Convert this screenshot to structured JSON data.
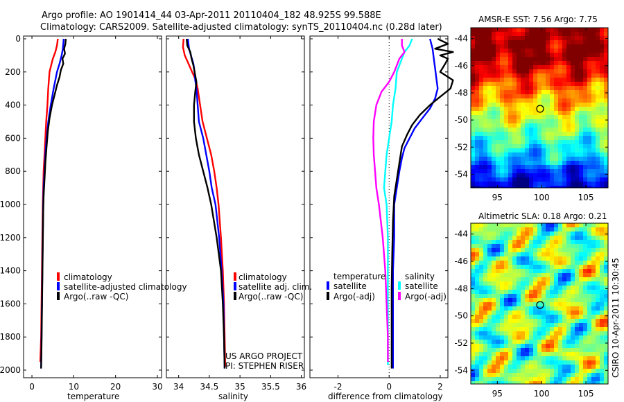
{
  "header": {
    "title_line1": "Argo profile: AO 1901414_44 03-Apr-2011 20110404_182 48.925S 99.588E",
    "title_line2": "Climatology: CARS2009. Satellite-adjusted climatology: synTS_20110404.nc (0.28d later)"
  },
  "colors": {
    "climatology": "#ff0000",
    "satellite": "#0000ff",
    "argo": "#000000",
    "argo_salinity": "#ff00ff",
    "satellite_salinity": "#00ffff"
  },
  "chart_data": [
    {
      "type": "line",
      "id": "temperature",
      "xlabel": "temperature",
      "xlim": [
        -2,
        31
      ],
      "ylim": [
        2050,
        0
      ],
      "xticks": [
        0,
        10,
        20,
        30
      ],
      "yticks": [
        0,
        200,
        400,
        600,
        800,
        1000,
        1200,
        1400,
        1600,
        1800,
        2000
      ],
      "series": [
        {
          "name": "climatology",
          "color": "#ff0000",
          "points": [
            [
              6.2,
              0
            ],
            [
              6.0,
              40
            ],
            [
              5.6,
              80
            ],
            [
              5.0,
              120
            ],
            [
              4.6,
              160
            ],
            [
              4.2,
              200
            ],
            [
              3.9,
              300
            ],
            [
              3.7,
              400
            ],
            [
              3.4,
              500
            ],
            [
              3.2,
              600
            ],
            [
              3.0,
              700
            ],
            [
              2.8,
              800
            ],
            [
              2.7,
              900
            ],
            [
              2.6,
              1000
            ],
            [
              2.5,
              1200
            ],
            [
              2.4,
              1400
            ],
            [
              2.3,
              1600
            ],
            [
              2.2,
              1800
            ],
            [
              2.0,
              1950
            ]
          ]
        },
        {
          "name": "satellite-adjusted climatology",
          "color": "#0000ff",
          "points": [
            [
              7.6,
              0
            ],
            [
              7.5,
              30
            ],
            [
              7.4,
              60
            ],
            [
              7.1,
              100
            ],
            [
              6.6,
              150
            ],
            [
              6.0,
              200
            ],
            [
              5.2,
              300
            ],
            [
              4.5,
              400
            ],
            [
              3.9,
              500
            ],
            [
              3.5,
              600
            ],
            [
              3.2,
              700
            ],
            [
              3.0,
              800
            ],
            [
              2.8,
              900
            ],
            [
              2.7,
              1000
            ],
            [
              2.6,
              1200
            ],
            [
              2.5,
              1400
            ],
            [
              2.4,
              1600
            ],
            [
              2.3,
              1800
            ],
            [
              2.2,
              1990
            ]
          ]
        },
        {
          "name": "Argo(..raw -QC)",
          "color": "#000000",
          "points": [
            [
              8.1,
              0
            ],
            [
              8.0,
              30
            ],
            [
              7.7,
              60
            ],
            [
              7.9,
              90
            ],
            [
              7.3,
              120
            ],
            [
              7.5,
              150
            ],
            [
              6.9,
              190
            ],
            [
              6.6,
              230
            ],
            [
              6.0,
              280
            ],
            [
              5.4,
              340
            ],
            [
              4.8,
              400
            ],
            [
              4.2,
              480
            ],
            [
              3.8,
              560
            ],
            [
              3.5,
              650
            ],
            [
              3.2,
              750
            ],
            [
              3.0,
              850
            ],
            [
              2.8,
              950
            ],
            [
              2.7,
              1050
            ],
            [
              2.6,
              1250
            ],
            [
              2.5,
              1450
            ],
            [
              2.4,
              1650
            ],
            [
              2.3,
              1850
            ],
            [
              2.2,
              1990
            ]
          ]
        }
      ],
      "legend": [
        "climatology",
        "satellite-adjusted climatology",
        "Argo(..raw -QC)"
      ]
    },
    {
      "type": "line",
      "id": "salinity",
      "xlabel": "salinity",
      "xlim": [
        33.8,
        36.05
      ],
      "ylim": [
        2050,
        0
      ],
      "xticks": [
        34,
        34.5,
        35,
        35.5,
        36
      ],
      "xtick_labels": [
        "34",
        "34.5",
        "35",
        "35.5",
        "36"
      ],
      "series": [
        {
          "name": "climatology",
          "color": "#ff0000",
          "points": [
            [
              34.08,
              0
            ],
            [
              34.07,
              50
            ],
            [
              34.1,
              100
            ],
            [
              34.16,
              150
            ],
            [
              34.22,
              200
            ],
            [
              34.28,
              250
            ],
            [
              34.31,
              300
            ],
            [
              34.35,
              400
            ],
            [
              34.39,
              500
            ],
            [
              34.46,
              600
            ],
            [
              34.53,
              700
            ],
            [
              34.58,
              800
            ],
            [
              34.62,
              900
            ],
            [
              34.65,
              1000
            ],
            [
              34.69,
              1200
            ],
            [
              34.72,
              1400
            ],
            [
              34.74,
              1600
            ],
            [
              34.75,
              1800
            ],
            [
              34.76,
              1980
            ]
          ]
        },
        {
          "name": "satellite adj. clim.",
          "color": "#0000ff",
          "points": [
            [
              34.15,
              0
            ],
            [
              34.16,
              30
            ],
            [
              34.17,
              60
            ],
            [
              34.2,
              100
            ],
            [
              34.24,
              150
            ],
            [
              34.26,
              200
            ],
            [
              34.27,
              250
            ],
            [
              34.29,
              300
            ],
            [
              34.31,
              400
            ],
            [
              34.33,
              500
            ],
            [
              34.4,
              600
            ],
            [
              34.45,
              700
            ],
            [
              34.5,
              800
            ],
            [
              34.54,
              900
            ],
            [
              34.6,
              1000
            ],
            [
              34.66,
              1200
            ],
            [
              34.7,
              1400
            ],
            [
              34.73,
              1600
            ],
            [
              34.74,
              1800
            ],
            [
              34.75,
              1990
            ]
          ]
        },
        {
          "name": "Argo(..raw -QC)",
          "color": "#000000",
          "points": [
            [
              34.13,
              0
            ],
            [
              34.14,
              40
            ],
            [
              34.19,
              80
            ],
            [
              34.21,
              120
            ],
            [
              34.24,
              160
            ],
            [
              34.26,
              200
            ],
            [
              34.29,
              260
            ],
            [
              34.27,
              320
            ],
            [
              34.25,
              400
            ],
            [
              34.25,
              500
            ],
            [
              34.28,
              600
            ],
            [
              34.33,
              700
            ],
            [
              34.4,
              800
            ],
            [
              34.47,
              900
            ],
            [
              34.53,
              1000
            ],
            [
              34.62,
              1200
            ],
            [
              34.69,
              1400
            ],
            [
              34.72,
              1600
            ],
            [
              34.74,
              1800
            ],
            [
              34.75,
              1990
            ]
          ]
        }
      ],
      "legend": [
        "climatology",
        "satellite adj. clim.",
        "Argo(..raw -QC)"
      ],
      "note_line1": "US ARGO PROJECT",
      "note_line2": "PI: STEPHEN RISER"
    },
    {
      "type": "line",
      "id": "difference",
      "xlabel": "difference from climatology",
      "xlim": [
        -3.1,
        2.3
      ],
      "ylim": [
        2050,
        0
      ],
      "xticks": [
        -2,
        0,
        2
      ],
      "series": [
        {
          "name": "temperature satellite",
          "color": "#0000ff",
          "points": [
            [
              1.6,
              0
            ],
            [
              1.7,
              60
            ],
            [
              1.75,
              120
            ],
            [
              1.8,
              180
            ],
            [
              1.85,
              240
            ],
            [
              1.9,
              300
            ],
            [
              1.8,
              360
            ],
            [
              1.6,
              420
            ],
            [
              1.3,
              480
            ],
            [
              1.0,
              540
            ],
            [
              0.8,
              600
            ],
            [
              0.6,
              660
            ],
            [
              0.5,
              720
            ],
            [
              0.4,
              800
            ],
            [
              0.3,
              900
            ],
            [
              0.2,
              1000
            ],
            [
              0.2,
              1200
            ],
            [
              0.15,
              1400
            ],
            [
              0.15,
              1600
            ],
            [
              0.15,
              1800
            ],
            [
              0.15,
              1990
            ]
          ]
        },
        {
          "name": "temperature Argo(-adj)",
          "color": "#000000",
          "points": [
            [
              1.9,
              0
            ],
            [
              2.3,
              30
            ],
            [
              1.8,
              60
            ],
            [
              2.5,
              80
            ],
            [
              2.0,
              100
            ],
            [
              2.3,
              120
            ],
            [
              2.2,
              150
            ],
            [
              2.0,
              200
            ],
            [
              2.5,
              250
            ],
            [
              2.4,
              300
            ],
            [
              2.0,
              350
            ],
            [
              1.6,
              400
            ],
            [
              1.2,
              460
            ],
            [
              0.9,
              520
            ],
            [
              0.7,
              580
            ],
            [
              0.5,
              650
            ],
            [
              0.4,
              750
            ],
            [
              0.3,
              850
            ],
            [
              0.2,
              950
            ],
            [
              0.15,
              1100
            ],
            [
              0.12,
              1300
            ],
            [
              0.1,
              1500
            ],
            [
              0.1,
              1700
            ],
            [
              0.1,
              1900
            ],
            [
              0.1,
              1990
            ]
          ]
        },
        {
          "name": "salinity satellite",
          "color": "#00ffff",
          "points": [
            [
              0.9,
              0
            ],
            [
              0.8,
              40
            ],
            [
              0.6,
              80
            ],
            [
              0.5,
              120
            ],
            [
              0.3,
              200
            ],
            [
              0.25,
              300
            ],
            [
              0.15,
              400
            ],
            [
              0.1,
              500
            ],
            [
              0.0,
              600
            ],
            [
              -0.1,
              700
            ],
            [
              -0.15,
              800
            ],
            [
              -0.2,
              900
            ],
            [
              -0.1,
              1000
            ],
            [
              -0.05,
              1200
            ],
            [
              -0.05,
              1400
            ],
            [
              -0.05,
              1600
            ],
            [
              -0.05,
              1800
            ],
            [
              -0.05,
              1970
            ]
          ]
        },
        {
          "name": "salinity Argo(-adj)",
          "color": "#ff00ff",
          "points": [
            [
              0.5,
              0
            ],
            [
              0.5,
              40
            ],
            [
              0.6,
              80
            ],
            [
              0.4,
              120
            ],
            [
              0.2,
              200
            ],
            [
              0.0,
              260
            ],
            [
              -0.3,
              320
            ],
            [
              -0.5,
              400
            ],
            [
              -0.6,
              500
            ],
            [
              -0.62,
              600
            ],
            [
              -0.6,
              700
            ],
            [
              -0.55,
              800
            ],
            [
              -0.5,
              900
            ],
            [
              -0.4,
              1000
            ],
            [
              -0.25,
              1200
            ],
            [
              -0.15,
              1400
            ],
            [
              -0.1,
              1600
            ],
            [
              -0.05,
              1800
            ],
            [
              -0.05,
              1950
            ]
          ]
        }
      ],
      "legend_titles": [
        "temperature",
        "salinity"
      ],
      "legend_left": [
        "satellite",
        "Argo(-adj)"
      ],
      "legend_right": [
        "satellite",
        "Argo(-adj)"
      ]
    }
  ],
  "maps": {
    "sst": {
      "title": "AMSR-E SST: 7.56 Argo: 7.75",
      "xticks": [
        "95",
        "100",
        "105"
      ],
      "yticks": [
        "-44",
        "-46",
        "-48",
        "-50",
        "-52",
        "-54"
      ]
    },
    "sla": {
      "title": "Altimetric SLA: 0.18 Argo: 0.21",
      "xticks": [
        "95",
        "100",
        "105"
      ],
      "yticks": [
        "-44",
        "-46",
        "-48",
        "-50",
        "-52",
        "-54"
      ]
    }
  },
  "footer": {
    "side_text": "CSIRO 10-Apr-2011 10:30:45"
  }
}
